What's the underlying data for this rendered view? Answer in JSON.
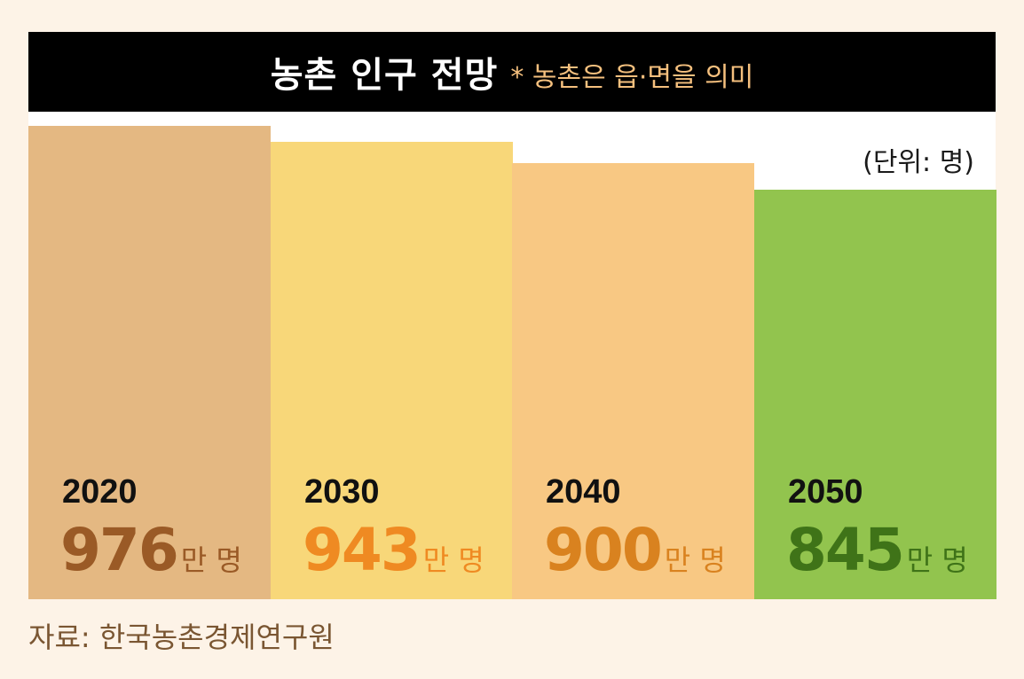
{
  "header": {
    "title": "농촌 인구 전망",
    "subtitle": "* 농촌은 읍·면을 의미"
  },
  "unit_note": "(단위: 명)",
  "source": "자료: 한국농촌경제연구원",
  "value_suffix": "만 명",
  "colors": {
    "bars": [
      "#e4b882",
      "#f8d779",
      "#f8c883",
      "#92c44e"
    ],
    "numbers": [
      "#9a5a26",
      "#ef8a22",
      "#d9821f",
      "#3f7318"
    ],
    "suffix": [
      "#9a5a26",
      "#ef8a22",
      "#d9821f",
      "#3f7318"
    ]
  },
  "chart_data": {
    "type": "bar",
    "categories": [
      "2020",
      "2030",
      "2040",
      "2050"
    ],
    "values": [
      976,
      943,
      900,
      845
    ],
    "display_values": [
      "976",
      "943",
      "900",
      "845"
    ],
    "ylabel": "",
    "ylim": [
      0,
      1170
    ]
  }
}
